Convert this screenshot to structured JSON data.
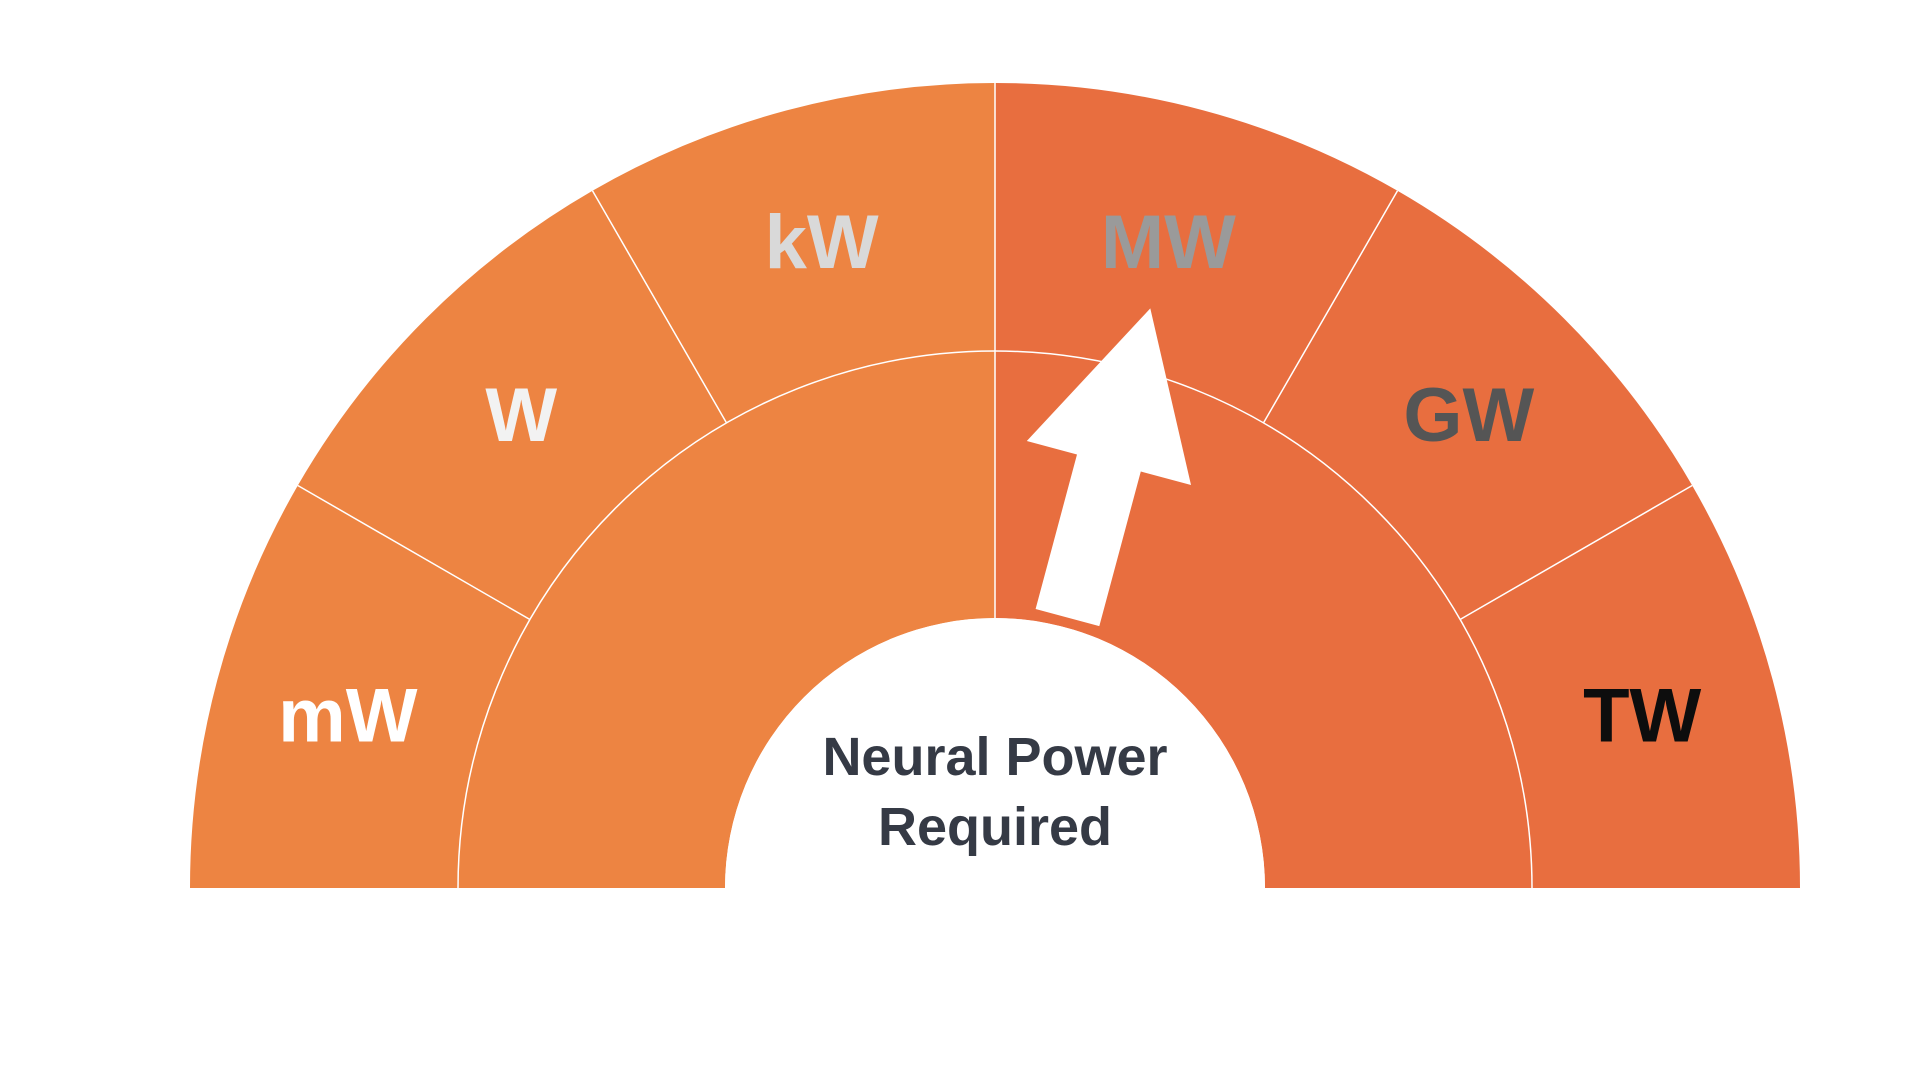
{
  "gauge": {
    "left_color": "#ED8442",
    "right_color": "#E86E3F",
    "divider_color": "#FFFFFF",
    "center_color": "#FFFFFF",
    "pointer_color": "#FFFFFF",
    "center_label_lines": [
      "Neural Power",
      "Required"
    ],
    "center_label_color": "#353A45",
    "pointer_unit": "MW",
    "units": [
      {
        "label": "mW",
        "color": "#FFFFFF"
      },
      {
        "label": "W",
        "color": "#F2F2F2"
      },
      {
        "label": "kW",
        "color": "#D9D9D9"
      },
      {
        "label": "MW",
        "color": "#9A9A9A"
      },
      {
        "label": "GW",
        "color": "#555555"
      },
      {
        "label": "TW",
        "color": "#0D0D0D"
      }
    ]
  }
}
